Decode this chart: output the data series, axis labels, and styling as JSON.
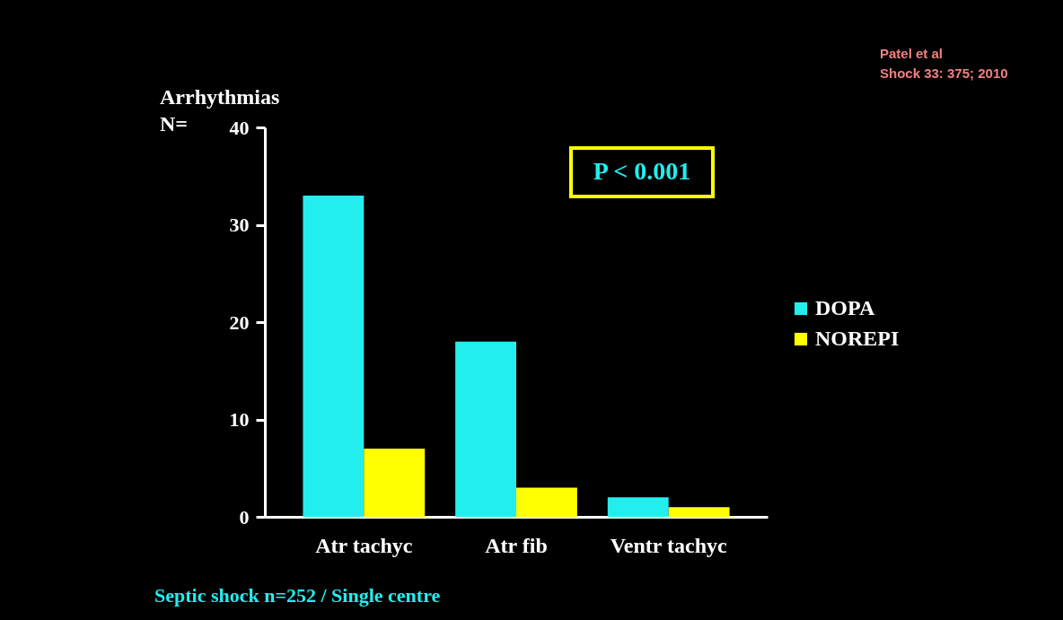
{
  "chart_data": {
    "type": "bar",
    "ylabel": "Arrhythmias\nN=",
    "categories": [
      "Atr tachyc",
      "Atr fib",
      "Ventr tachyc"
    ],
    "series": [
      {
        "name": "DOPA",
        "color": "#22eeee",
        "values": [
          33,
          18,
          2
        ]
      },
      {
        "name": "NOREPI",
        "color": "#ffff00",
        "values": [
          7,
          3,
          1
        ]
      }
    ],
    "ylim": [
      0,
      40
    ],
    "yticks": [
      0,
      10,
      20,
      30,
      40
    ],
    "grid": false,
    "legend": "right",
    "annotations": [
      "Patel et al",
      "Shock 33: 375; 2010",
      "P < 0.001",
      "Septic shock n=252 / Single centre"
    ]
  }
}
